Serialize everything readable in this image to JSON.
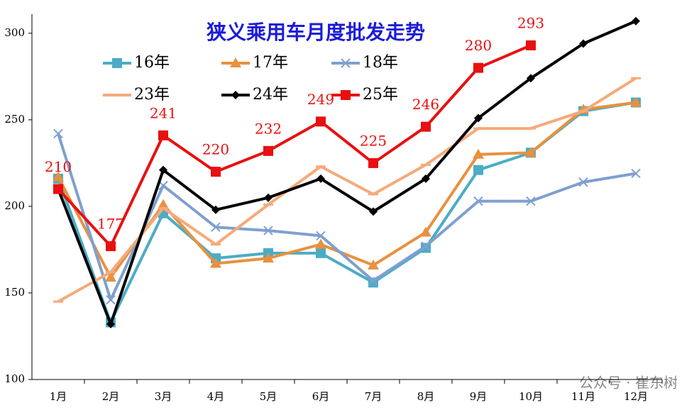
{
  "chart_data": {
    "type": "line",
    "title": "狭义乘用车月度批发走势",
    "categories": [
      "1月",
      "2月",
      "3月",
      "4月",
      "5月",
      "6月",
      "7月",
      "8月",
      "9月",
      "10月",
      "11月",
      "12月"
    ],
    "ylim": [
      100,
      311
    ],
    "yticks": [
      100,
      150,
      200,
      250,
      300
    ],
    "series": [
      {
        "name": "16年",
        "color": "#4bacc6",
        "marker": "square",
        "values": [
          216,
          133,
          196,
          170,
          173,
          173,
          156,
          176,
          221,
          231,
          255,
          260
        ]
      },
      {
        "name": "17年",
        "color": "#e8913f",
        "marker": "triangle",
        "values": [
          217,
          159,
          201,
          167,
          170,
          178,
          166,
          185,
          230,
          231,
          256,
          260
        ]
      },
      {
        "name": "18年",
        "color": "#7f9fd0",
        "marker": "x",
        "values": [
          242,
          146,
          212,
          188,
          186,
          183,
          157,
          177,
          203,
          203,
          214,
          219
        ]
      },
      {
        "name": "23年",
        "color": "#f5aa7a",
        "marker": "dash",
        "values": [
          145,
          162,
          199,
          178,
          201,
          223,
          207,
          224,
          245,
          245,
          255,
          274
        ]
      },
      {
        "name": "24年",
        "color": "#000000",
        "marker": "diamond",
        "values": [
          210,
          132,
          221,
          198,
          205,
          216,
          197,
          216,
          251,
          274,
          294,
          307
        ]
      },
      {
        "name": "25年",
        "color": "#e81010",
        "marker": "square",
        "data_labels": true,
        "values": [
          210,
          177,
          241,
          220,
          232,
          249,
          225,
          246,
          280,
          293,
          null,
          null
        ]
      }
    ],
    "watermark": "公众号 · 崔东树"
  }
}
